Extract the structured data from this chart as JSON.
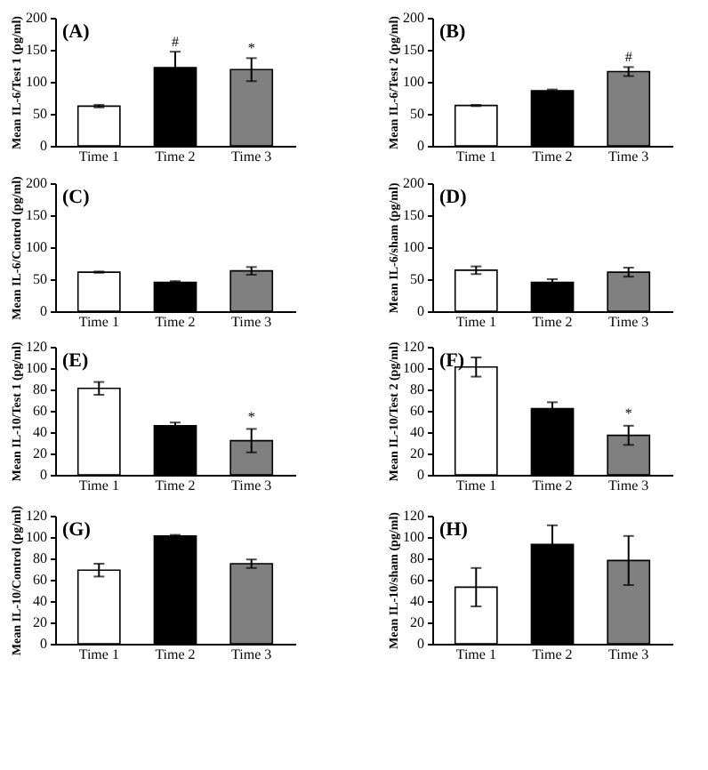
{
  "chart_data": [
    {
      "type": "bar",
      "title": "(A)",
      "ylabel": "Mean IL-6/Test 1 (pg/ml)",
      "categories": [
        "Time 1",
        "Time 2",
        "Time 3"
      ],
      "values": [
        62,
        122,
        119
      ],
      "errors": [
        2,
        25,
        18
      ],
      "colors": [
        "#ffffff",
        "#000000",
        "#808080"
      ],
      "ylim": [
        0,
        200
      ],
      "yticks": [
        0,
        50,
        100,
        150,
        200
      ],
      "annotations": [
        {
          "text": "#",
          "x": "Time 2",
          "y": 150
        },
        {
          "text": "*",
          "x": "Time 3",
          "y": 140
        }
      ]
    },
    {
      "type": "bar",
      "title": "(B)",
      "ylabel": "Mean IL-6/Test 2 (pg/ml)",
      "categories": [
        "Time 1",
        "Time 2",
        "Time 3"
      ],
      "values": [
        63,
        86,
        116
      ],
      "errors": [
        1,
        2,
        7
      ],
      "colors": [
        "#ffffff",
        "#000000",
        "#808080"
      ],
      "ylim": [
        0,
        200
      ],
      "yticks": [
        0,
        50,
        100,
        150,
        200
      ],
      "annotations": [
        {
          "text": "#",
          "x": "Time 3",
          "y": 126
        }
      ]
    },
    {
      "type": "bar",
      "title": "(C)",
      "ylabel": "Mean IL-6/Control (pg/ml)",
      "categories": [
        "Time 1",
        "Time 2",
        "Time 3"
      ],
      "values": [
        61,
        45,
        63
      ],
      "errors": [
        1,
        2,
        6
      ],
      "colors": [
        "#ffffff",
        "#000000",
        "#808080"
      ],
      "ylim": [
        0,
        200
      ],
      "yticks": [
        0,
        50,
        100,
        150,
        200
      ]
    },
    {
      "type": "bar",
      "title": "(D)",
      "ylabel": "Mean IL-6/sham (pg/ml)",
      "categories": [
        "Time 1",
        "Time 2",
        "Time 3"
      ],
      "values": [
        64,
        45,
        61
      ],
      "errors": [
        6,
        5,
        7
      ],
      "colors": [
        "#ffffff",
        "#000000",
        "#808080"
      ],
      "ylim": [
        0,
        200
      ],
      "yticks": [
        0,
        50,
        100,
        150,
        200
      ]
    },
    {
      "type": "bar",
      "title": "(E)",
      "ylabel": "Mean IL-10/Test 1 (pg/ml)",
      "categories": [
        "Time 1",
        "Time 2",
        "Time 3"
      ],
      "values": [
        81,
        46,
        32
      ],
      "errors": [
        6,
        3,
        11
      ],
      "colors": [
        "#ffffff",
        "#000000",
        "#808080"
      ],
      "ylim": [
        0,
        120
      ],
      "yticks": [
        0,
        20,
        40,
        60,
        80,
        100,
        120
      ],
      "annotations": [
        {
          "text": "*",
          "x": "Time 3",
          "y": 47
        }
      ]
    },
    {
      "type": "bar",
      "title": "(F)",
      "ylabel": "Mean IL-10/Test 2 (pg/ml)",
      "categories": [
        "Time 1",
        "Time 2",
        "Time 3"
      ],
      "values": [
        101,
        62,
        37
      ],
      "errors": [
        9,
        6,
        9
      ],
      "colors": [
        "#ffffff",
        "#000000",
        "#808080"
      ],
      "ylim": [
        0,
        120
      ],
      "yticks": [
        0,
        20,
        40,
        60,
        80,
        100,
        120
      ],
      "annotations": [
        {
          "text": "*",
          "x": "Time 3",
          "y": 50
        }
      ]
    },
    {
      "type": "bar",
      "title": "(G)",
      "ylabel": "Mean IL-10/Control (pg/ml)",
      "categories": [
        "Time 1",
        "Time 2",
        "Time 3"
      ],
      "values": [
        69,
        101,
        75
      ],
      "errors": [
        6,
        1,
        4
      ],
      "colors": [
        "#ffffff",
        "#000000",
        "#808080"
      ],
      "ylim": [
        0,
        120
      ],
      "yticks": [
        0,
        20,
        40,
        60,
        80,
        100,
        120
      ]
    },
    {
      "type": "bar",
      "title": "(H)",
      "ylabel": "Mean IL-10/sham (pg/ml)",
      "categories": [
        "Time 1",
        "Time 2",
        "Time 3"
      ],
      "values": [
        53,
        93,
        78
      ],
      "errors": [
        18,
        18,
        23
      ],
      "colors": [
        "#ffffff",
        "#000000",
        "#808080"
      ],
      "ylim": [
        0,
        120
      ],
      "yticks": [
        0,
        20,
        40,
        60,
        80,
        100,
        120
      ]
    }
  ]
}
